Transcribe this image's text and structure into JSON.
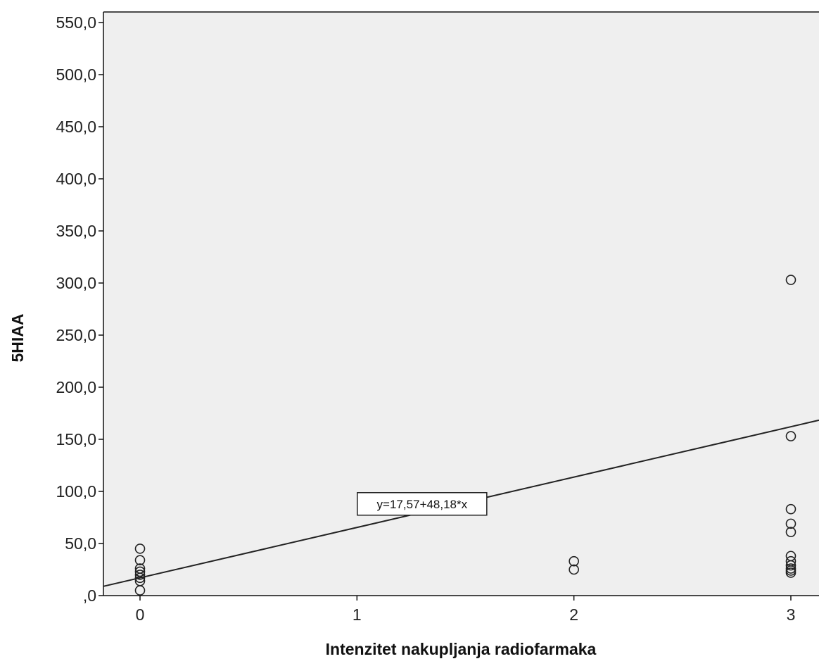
{
  "chart_data": {
    "type": "scatter",
    "title": "",
    "xlabel": "Intenzitet nakupljanja radiofarmaka",
    "ylabel": "5HIAA",
    "xlim": [
      -0.18,
      3.03
    ],
    "ylim": [
      0,
      560
    ],
    "x_ticks": [
      0,
      1,
      2,
      3
    ],
    "x_tick_labels": [
      "0",
      "1",
      "2",
      "3"
    ],
    "y_ticks": [
      0,
      50,
      100,
      150,
      200,
      250,
      300,
      350,
      400,
      450,
      500,
      550
    ],
    "y_tick_labels": [
      ",0",
      "50,0",
      "100,0",
      "150,0",
      "200,0",
      "250,0",
      "300,0",
      "350,0",
      "400,0",
      "450,0",
      "500,0",
      "550,0"
    ],
    "grid": false,
    "plot_background": "#efefef",
    "marker_color": "#222222",
    "points": [
      {
        "x": 0,
        "y": 45
      },
      {
        "x": 0,
        "y": 34
      },
      {
        "x": 0,
        "y": 26
      },
      {
        "x": 0,
        "y": 23
      },
      {
        "x": 0,
        "y": 20
      },
      {
        "x": 0,
        "y": 17
      },
      {
        "x": 0,
        "y": 14
      },
      {
        "x": 0,
        "y": 5
      },
      {
        "x": 2,
        "y": 33
      },
      {
        "x": 2,
        "y": 25
      },
      {
        "x": 3,
        "y": 303
      },
      {
        "x": 3,
        "y": 153
      },
      {
        "x": 3,
        "y": 83
      },
      {
        "x": 3,
        "y": 69
      },
      {
        "x": 3,
        "y": 61
      },
      {
        "x": 3,
        "y": 38
      },
      {
        "x": 3,
        "y": 33
      },
      {
        "x": 3,
        "y": 29
      },
      {
        "x": 3,
        "y": 26
      },
      {
        "x": 3,
        "y": 24
      },
      {
        "x": 3,
        "y": 22
      }
    ],
    "fit_line": {
      "intercept": 17.57,
      "slope": 48.18,
      "equation_label": "y=17,57+48,18*x",
      "label_x": 1.3,
      "label_y": 88
    }
  }
}
